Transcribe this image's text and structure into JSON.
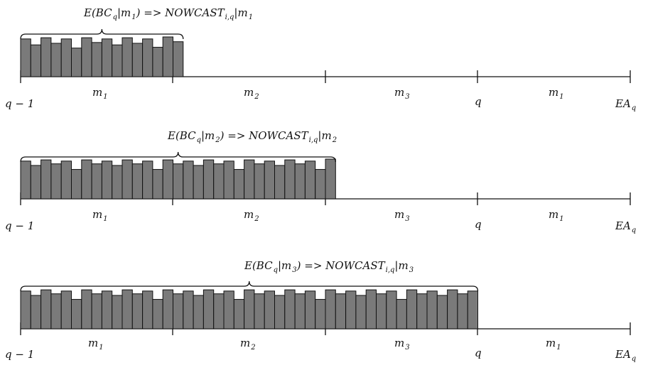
{
  "panels": [
    {
      "header": {
        "pre": "E(BC",
        "sub1": "q",
        "mid": "|m",
        "sub2": "1",
        "post": ") => NOWCAST",
        "sub3": "i,q",
        "tail": "|m",
        "sub4": "1"
      },
      "segment_labels": [
        {
          "base": "m",
          "sub": "1"
        },
        {
          "base": "m",
          "sub": "2"
        },
        {
          "base": "m",
          "sub": "3"
        },
        {
          "base": "m",
          "sub": "1"
        }
      ],
      "left_label": "q − 1",
      "q_label": "q",
      "end_label": {
        "base": "EA",
        "sub": "q"
      },
      "bar_heights": [
        0.95,
        0.8,
        0.98,
        0.84,
        0.95,
        0.72,
        0.98,
        0.86,
        0.95,
        0.8,
        0.98,
        0.84,
        0.95,
        0.74,
        1.0,
        0.88
      ]
    },
    {
      "header": {
        "pre": "E(BC",
        "sub1": "q",
        "mid": "|m",
        "sub2": "2",
        "post": ") => NOWCAST",
        "sub3": "i,q",
        "tail": "|m",
        "sub4": "2"
      },
      "segment_labels": [
        {
          "base": "m",
          "sub": "1"
        },
        {
          "base": "m",
          "sub": "2"
        },
        {
          "base": "m",
          "sub": "3"
        },
        {
          "base": "m",
          "sub": "1"
        }
      ],
      "left_label": "q − 1",
      "q_label": "q",
      "end_label": {
        "base": "EA",
        "sub": "q"
      },
      "bar_heights": [
        0.95,
        0.84,
        0.98,
        0.88,
        0.95,
        0.74,
        0.98,
        0.88,
        0.95,
        0.84,
        0.98,
        0.88,
        0.95,
        0.74,
        0.98,
        0.88,
        0.95,
        0.84,
        0.98,
        0.88,
        0.95,
        0.74,
        0.98,
        0.88,
        0.95,
        0.84,
        0.98,
        0.88,
        0.95,
        0.74,
        1.0
      ]
    },
    {
      "header": {
        "pre": "E(BC",
        "sub1": "q",
        "mid": "|m",
        "sub2": "3",
        "post": ") => NOWCAST",
        "sub3": "i,q",
        "tail": "|m",
        "sub4": "3"
      },
      "segment_labels": [
        {
          "base": "m",
          "sub": "1"
        },
        {
          "base": "m",
          "sub": "2"
        },
        {
          "base": "m",
          "sub": "3"
        },
        {
          "base": "m",
          "sub": "1"
        }
      ],
      "left_label": "q − 1",
      "q_label": "q",
      "end_label": {
        "base": "EA",
        "sub": "q"
      },
      "bar_heights": [
        0.95,
        0.84,
        0.98,
        0.88,
        0.95,
        0.74,
        0.98,
        0.88,
        0.95,
        0.84,
        0.98,
        0.88,
        0.95,
        0.74,
        0.98,
        0.88,
        0.95,
        0.84,
        0.98,
        0.88,
        0.95,
        0.74,
        0.98,
        0.88,
        0.95,
        0.84,
        0.98,
        0.88,
        0.95,
        0.74,
        0.98,
        0.88,
        0.95,
        0.84,
        0.98,
        0.88,
        0.95,
        0.74,
        0.98,
        0.88,
        0.95,
        0.84,
        0.98,
        0.88,
        0.95
      ]
    }
  ],
  "colors": {
    "bar_fill": "#7a7a7a",
    "bar_stroke": "#111111",
    "axis": "#111111"
  }
}
